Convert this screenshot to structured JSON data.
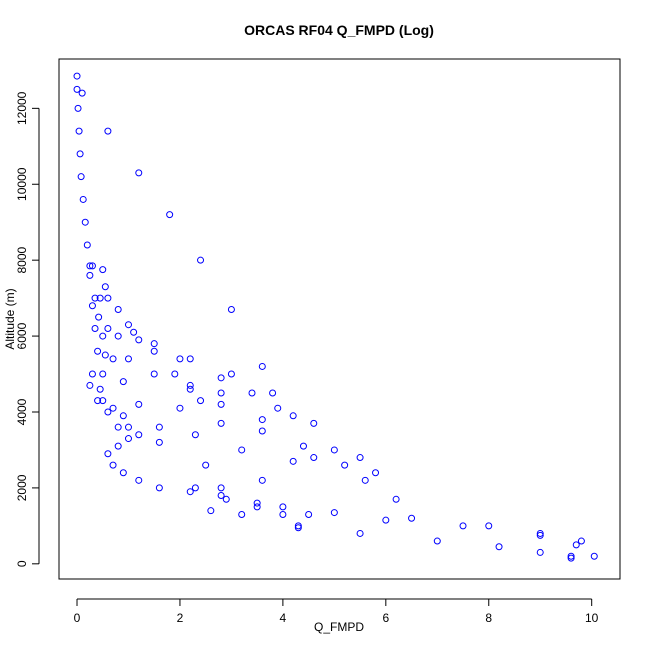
{
  "chart_data": {
    "type": "scatter",
    "title": "ORCAS RF04 Q_FMPD (Log)",
    "xlabel": "Q_FMPD",
    "ylabel": "Altitude (m)",
    "xlim": [
      -0.35,
      10.55
    ],
    "ylim": [
      -400,
      13300
    ],
    "xticks": [
      0,
      2,
      4,
      6,
      8,
      10
    ],
    "yticks": [
      0,
      2000,
      4000,
      6000,
      8000,
      10000,
      12000
    ],
    "marker": "open-circle",
    "color": "#0000ff",
    "series": [
      {
        "name": "",
        "points": [
          [
            0.0,
            12850
          ],
          [
            0.0,
            12500
          ],
          [
            0.02,
            12000
          ],
          [
            0.04,
            11400
          ],
          [
            0.06,
            10800
          ],
          [
            0.08,
            10200
          ],
          [
            0.12,
            9600
          ],
          [
            0.16,
            9000
          ],
          [
            0.2,
            8400
          ],
          [
            0.25,
            7850
          ],
          [
            0.3,
            7850
          ],
          [
            0.35,
            7000
          ],
          [
            0.42,
            6500
          ],
          [
            0.5,
            6000
          ],
          [
            0.55,
            5500
          ],
          [
            0.5,
            5000
          ],
          [
            0.45,
            4600
          ],
          [
            0.5,
            4300
          ],
          [
            0.7,
            4100
          ],
          [
            0.9,
            3900
          ],
          [
            1.0,
            3600
          ],
          [
            1.0,
            3300
          ],
          [
            0.8,
            3100
          ],
          [
            0.6,
            2900
          ],
          [
            0.7,
            2600
          ],
          [
            0.9,
            2400
          ],
          [
            1.2,
            2200
          ],
          [
            1.6,
            2000
          ],
          [
            2.2,
            1900
          ],
          [
            2.9,
            1700
          ],
          [
            3.5,
            1500
          ],
          [
            5.0,
            1350
          ],
          [
            6.5,
            1200
          ],
          [
            8.0,
            1000
          ],
          [
            9.0,
            800
          ],
          [
            9.8,
            600
          ],
          [
            10.05,
            200
          ],
          [
            9.6,
            150
          ],
          [
            9.0,
            300
          ],
          [
            8.2,
            450
          ],
          [
            7.0,
            600
          ],
          [
            5.5,
            800
          ],
          [
            4.3,
            950
          ],
          [
            4.0,
            1500
          ],
          [
            3.6,
            2200
          ],
          [
            3.2,
            3000
          ],
          [
            2.8,
            3700
          ],
          [
            2.4,
            4300
          ],
          [
            1.9,
            5000
          ],
          [
            1.5,
            5600
          ],
          [
            1.1,
            6100
          ],
          [
            0.8,
            6700
          ],
          [
            0.55,
            7300
          ],
          [
            0.5,
            7750
          ],
          [
            0.6,
            7000
          ],
          [
            1.0,
            6300
          ],
          [
            1.5,
            5800
          ],
          [
            2.2,
            5400
          ],
          [
            3.0,
            5000
          ],
          [
            3.8,
            4500
          ],
          [
            4.6,
            3700
          ],
          [
            5.5,
            2800
          ],
          [
            6.2,
            1700
          ],
          [
            5.6,
            2200
          ],
          [
            4.6,
            2800
          ],
          [
            3.6,
            3500
          ],
          [
            2.8,
            4200
          ],
          [
            2.2,
            4600
          ],
          [
            1.5,
            5000
          ],
          [
            1.0,
            5400
          ],
          [
            0.8,
            6000
          ],
          [
            1.2,
            5900
          ],
          [
            2.0,
            5400
          ],
          [
            2.8,
            4900
          ],
          [
            3.4,
            4500
          ],
          [
            4.2,
            3900
          ],
          [
            5.0,
            3000
          ],
          [
            5.8,
            2400
          ],
          [
            5.2,
            2600
          ],
          [
            4.4,
            3100
          ],
          [
            3.6,
            3800
          ],
          [
            2.8,
            4500
          ],
          [
            2.2,
            4700
          ],
          [
            2.0,
            4100
          ],
          [
            2.3,
            3400
          ],
          [
            2.5,
            2600
          ],
          [
            2.3,
            2000
          ],
          [
            2.8,
            1800
          ],
          [
            3.2,
            1300
          ],
          [
            0.25,
            7600
          ],
          [
            0.3,
            6800
          ],
          [
            0.35,
            6200
          ],
          [
            0.4,
            5600
          ],
          [
            0.3,
            5000
          ],
          [
            0.25,
            4700
          ],
          [
            0.4,
            4300
          ],
          [
            0.6,
            4000
          ],
          [
            0.8,
            3600
          ],
          [
            1.2,
            3400
          ],
          [
            1.6,
            3200
          ],
          [
            1.6,
            3600
          ],
          [
            1.2,
            4200
          ],
          [
            0.9,
            4800
          ],
          [
            0.7,
            5400
          ],
          [
            0.6,
            6200
          ],
          [
            0.45,
            7000
          ],
          [
            0.1,
            12400
          ],
          [
            0.6,
            11400
          ],
          [
            1.2,
            10300
          ],
          [
            1.8,
            9200
          ],
          [
            2.4,
            8000
          ],
          [
            3.0,
            6700
          ],
          [
            3.6,
            5200
          ],
          [
            3.9,
            4100
          ],
          [
            4.2,
            2700
          ],
          [
            4.5,
            1300
          ],
          [
            4.3,
            1000
          ],
          [
            3.5,
            1600
          ],
          [
            2.8,
            2000
          ],
          [
            2.6,
            1400
          ],
          [
            4.0,
            1300
          ],
          [
            6.0,
            1150
          ],
          [
            7.5,
            1000
          ],
          [
            9.0,
            750
          ],
          [
            9.7,
            500
          ],
          [
            9.6,
            200
          ]
        ]
      }
    ]
  }
}
